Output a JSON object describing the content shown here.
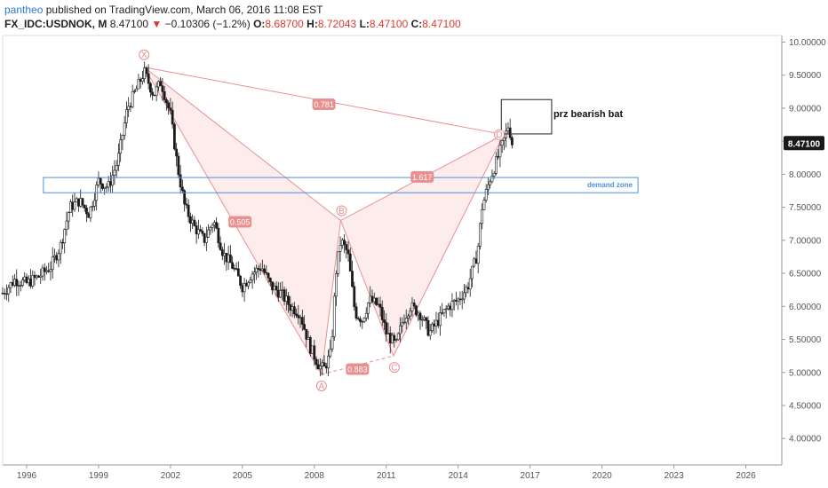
{
  "header": {
    "user": "pantheo",
    "published": "published on TradingView.com, March 06, 2016 11:08 EST",
    "symbol": "FX_IDC:USDNOK, M",
    "last": "8.47100",
    "change_arrow": "▼",
    "change": "−0.10306 (−1.2%)",
    "o_label": "O:",
    "o_value": "8.68700",
    "h_label": "H:",
    "h_value": "8.72043",
    "l_label": "L:",
    "l_value": "8.47100",
    "c_label": "C:",
    "c_value": "8.47100"
  },
  "colors": {
    "pattern": "#e89090",
    "pattern_fill": "#fbe5e5",
    "zone": "#4a90d9",
    "candle": "#1a1a1a",
    "price_badge_bg": "#1a1a1a",
    "axis": "#999999"
  },
  "chart_data": {
    "type": "candlestick",
    "title": "FX_IDC:USDNOK, M",
    "x_ticks": [
      "1996",
      "1999",
      "2002",
      "2005",
      "2008",
      "2011",
      "2014",
      "2017",
      "2020",
      "2023",
      "2026"
    ],
    "y_ticks": [
      "10.00000",
      "9.50000",
      "9.00000",
      "8.50000",
      "8.00000",
      "7.50000",
      "7.00000",
      "6.50000",
      "6.00000",
      "5.50000",
      "5.00000",
      "4.50000",
      "4.00000"
    ],
    "ylim": [
      3.6,
      10.1
    ],
    "xlim": [
      1995.0,
      2027.5
    ],
    "last_price_label": "8.47100",
    "last_price": 8.471,
    "price_path": [
      [
        1995.0,
        6.2
      ],
      [
        1995.5,
        6.4
      ],
      [
        1996.0,
        6.35
      ],
      [
        1996.5,
        6.45
      ],
      [
        1997.0,
        6.6
      ],
      [
        1997.4,
        6.9
      ],
      [
        1997.8,
        7.5
      ],
      [
        1998.2,
        7.6
      ],
      [
        1998.6,
        7.4
      ],
      [
        1999.0,
        7.9
      ],
      [
        1999.4,
        7.8
      ],
      [
        1999.8,
        8.2
      ],
      [
        2000.2,
        9.0
      ],
      [
        2000.6,
        9.3
      ],
      [
        2000.9,
        9.55
      ],
      [
        2001.3,
        9.2
      ],
      [
        2001.6,
        9.4
      ],
      [
        2002.0,
        8.9
      ],
      [
        2002.3,
        8.1
      ],
      [
        2002.6,
        7.5
      ],
      [
        2003.0,
        7.2
      ],
      [
        2003.4,
        7.0
      ],
      [
        2003.8,
        7.3
      ],
      [
        2004.2,
        6.8
      ],
      [
        2004.6,
        6.6
      ],
      [
        2005.0,
        6.3
      ],
      [
        2005.4,
        6.5
      ],
      [
        2005.8,
        6.6
      ],
      [
        2006.2,
        6.3
      ],
      [
        2006.6,
        6.2
      ],
      [
        2007.0,
        6.0
      ],
      [
        2007.4,
        5.9
      ],
      [
        2007.8,
        5.4
      ],
      [
        2008.2,
        5.1
      ],
      [
        2008.4,
        5.05
      ],
      [
        2008.7,
        5.3
      ],
      [
        2008.9,
        6.5
      ],
      [
        2009.1,
        7.0
      ],
      [
        2009.4,
        6.8
      ],
      [
        2009.7,
        5.9
      ],
      [
        2010.0,
        5.8
      ],
      [
        2010.3,
        6.1
      ],
      [
        2010.7,
        6.0
      ],
      [
        2011.0,
        5.6
      ],
      [
        2011.4,
        5.4
      ],
      [
        2011.7,
        5.8
      ],
      [
        2012.0,
        6.0
      ],
      [
        2012.4,
        5.9
      ],
      [
        2012.8,
        5.6
      ],
      [
        2013.2,
        5.8
      ],
      [
        2013.6,
        6.0
      ],
      [
        2014.0,
        6.1
      ],
      [
        2014.4,
        6.3
      ],
      [
        2014.8,
        6.8
      ],
      [
        2015.0,
        7.5
      ],
      [
        2015.3,
        7.9
      ],
      [
        2015.6,
        8.2
      ],
      [
        2015.9,
        8.5
      ],
      [
        2016.1,
        8.75
      ],
      [
        2016.25,
        8.47
      ]
    ],
    "harmonic_points": [
      {
        "label": "X",
        "x": 2000.9,
        "y": 9.62
      },
      {
        "label": "A",
        "x": 2008.3,
        "y": 4.97
      },
      {
        "label": "B",
        "x": 2009.1,
        "y": 7.3
      },
      {
        "label": "C",
        "x": 2011.3,
        "y": 5.25
      },
      {
        "label": "D",
        "x": 2015.9,
        "y": 8.6
      }
    ],
    "ratios": [
      {
        "label": "0.781",
        "x": 2008.4,
        "y": 9.06
      },
      {
        "label": "0.505",
        "x": 2004.9,
        "y": 7.28
      },
      {
        "label": "0.883",
        "x": 2009.8,
        "y": 5.05
      },
      {
        "label": "1.617",
        "x": 2012.5,
        "y": 7.96
      }
    ],
    "demand_zone": {
      "label": "demand zone",
      "x1": 1996.7,
      "x2": 2021.5,
      "y_top": 7.95,
      "y_bottom": 7.72
    },
    "prz_box": {
      "label": "prz bearish bat",
      "x1": 2015.8,
      "x2": 2017.9,
      "y_top": 9.13,
      "y_bottom": 8.61
    }
  }
}
